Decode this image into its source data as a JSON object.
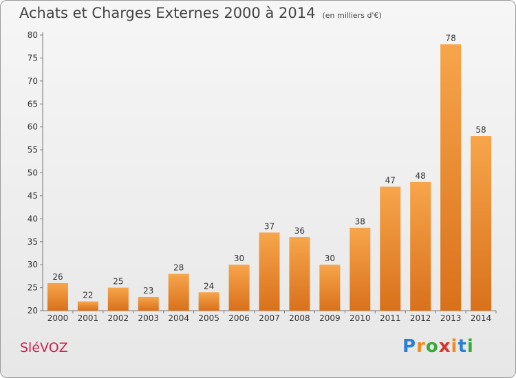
{
  "header": {
    "title": "Achats et Charges Externes 2000 à 2014",
    "subtitle": "(en milliers d'€)"
  },
  "footer": {
    "commune": "SléVOZ",
    "logo": [
      "P",
      "r",
      "o",
      "x",
      "i",
      "t",
      "i"
    ]
  },
  "colors": {
    "bar_light": "#f7a54b",
    "bar_dark": "#d9711b",
    "commune_text": "#c8254e"
  },
  "chart_data": {
    "type": "bar",
    "title": "Achats et Charges Externes 2000 à 2014",
    "subtitle": "(en milliers d'€)",
    "categories": [
      "2000",
      "2001",
      "2002",
      "2003",
      "2004",
      "2005",
      "2006",
      "2007",
      "2008",
      "2009",
      "2010",
      "2011",
      "2012",
      "2013",
      "2014"
    ],
    "values": [
      26,
      22,
      25,
      23,
      28,
      24,
      30,
      37,
      36,
      30,
      38,
      47,
      48,
      78,
      58
    ],
    "ylim": [
      20,
      80
    ],
    "yticks": [
      20,
      25,
      30,
      35,
      40,
      45,
      50,
      55,
      60,
      65,
      70,
      75,
      80
    ],
    "grid": false,
    "legend": "none",
    "data_labels": true
  }
}
